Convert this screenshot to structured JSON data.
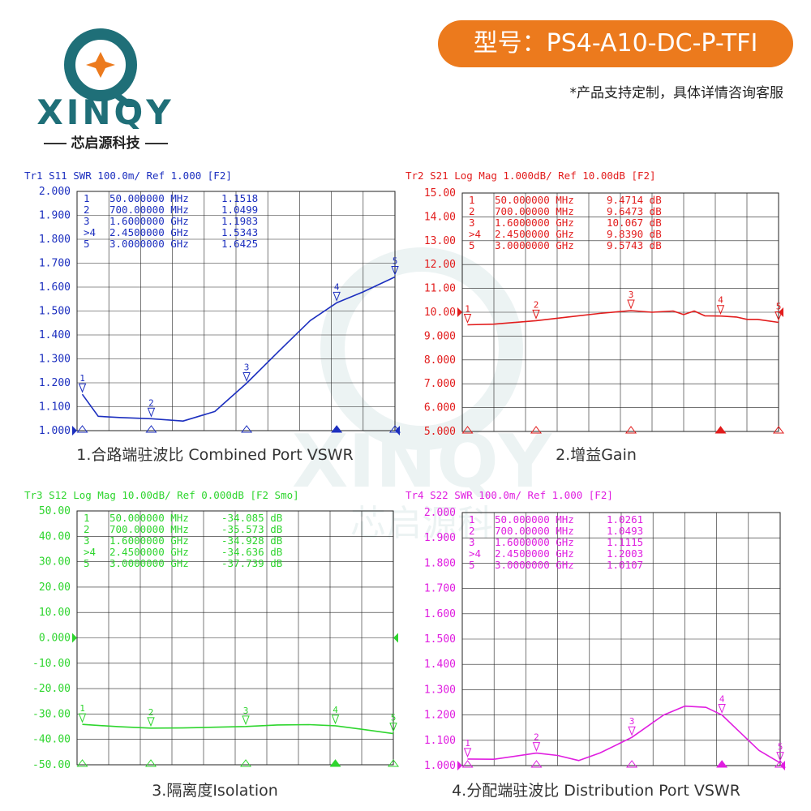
{
  "brand": {
    "name": "XINQY",
    "subtitle": "芯启源科技",
    "watermark_text": "XINQY",
    "watermark_sub": "芯启源科"
  },
  "header": {
    "model": "型号：PS4-A10-DC-P-TFI",
    "note": "*产品支持定制，具体详情咨询客服"
  },
  "colors": {
    "s11": "#1c2fbf",
    "s21": "#e21c1c",
    "s12": "#2ed52e",
    "s22": "#e01ee0",
    "grid": "#222222",
    "accent": "#ec7a1d",
    "brand": "#1f6f78"
  },
  "chart_data": [
    {
      "type": "line",
      "header": "Tr1  S11  SWR 100.0m/ Ref 1.000 [F2]",
      "caption": "1.合路端驻波比 Combined Port VSWR",
      "x": [
        0.05,
        0.2,
        0.4,
        0.7,
        1.0,
        1.3,
        1.6,
        1.9,
        2.2,
        2.45,
        2.7,
        3.0
      ],
      "series": [
        {
          "values": [
            1.1518,
            1.06,
            1.055,
            1.0499,
            1.04,
            1.08,
            1.1983,
            1.33,
            1.46,
            1.5343,
            1.58,
            1.6425
          ]
        }
      ],
      "ylim": [
        1.0,
        2.0
      ],
      "xlim": [
        0.0,
        3.0
      ],
      "yticks": [
        "2.000",
        "1.900",
        "1.800",
        "1.700",
        "1.600",
        "1.500",
        "1.400",
        "1.300",
        "1.200",
        "1.100",
        "1.000"
      ],
      "markers": [
        {
          "num": "1",
          "freq": "50.000000 MHz",
          "value": "1.1518",
          "x": 0.05,
          "y": 1.1518
        },
        {
          "num": "2",
          "freq": "700.00000 MHz",
          "value": "1.0499",
          "x": 0.7,
          "y": 1.0499
        },
        {
          "num": "3",
          "freq": "1.6000000 GHz",
          "value": "1.1983",
          "x": 1.6,
          "y": 1.1983
        },
        {
          "num": ">4",
          "freq": "2.4500000 GHz",
          "value": "1.5343",
          "x": 2.45,
          "y": 1.5343
        },
        {
          "num": "5",
          "freq": "3.0000000 GHz",
          "value": "1.6425",
          "x": 3.0,
          "y": 1.6425
        }
      ]
    },
    {
      "type": "line",
      "header": "Tr2  S21  Log Mag 1.000dB/ Ref 10.00dB [F2]",
      "caption": "2.增益Gain",
      "x": [
        0.05,
        0.3,
        0.7,
        1.0,
        1.3,
        1.6,
        1.8,
        2.0,
        2.1,
        2.2,
        2.3,
        2.45,
        2.6,
        2.7,
        2.8,
        3.0
      ],
      "series": [
        {
          "values": [
            9.4714,
            9.5,
            9.6473,
            9.8,
            9.95,
            10.067,
            10.0,
            10.05,
            9.9,
            10.05,
            9.85,
            9.839,
            9.8,
            9.7,
            9.7,
            9.5743
          ]
        }
      ],
      "ylim": [
        5.0,
        15.0
      ],
      "xlim": [
        0.0,
        3.0
      ],
      "yticks": [
        "15.00",
        "14.00",
        "13.00",
        "12.00",
        "11.00",
        "10.00",
        "9.000",
        "8.000",
        "7.000",
        "6.000",
        "5.000"
      ],
      "markers": [
        {
          "num": "1",
          "freq": "50.000000 MHz",
          "value": "9.4714 dB",
          "x": 0.05,
          "y": 9.4714
        },
        {
          "num": "2",
          "freq": "700.00000 MHz",
          "value": "9.6473 dB",
          "x": 0.7,
          "y": 9.6473
        },
        {
          "num": "3",
          "freq": "1.6000000 GHz",
          "value": "10.067 dB",
          "x": 1.6,
          "y": 10.067
        },
        {
          "num": ">4",
          "freq": "2.4500000 GHz",
          "value": "9.8390 dB",
          "x": 2.45,
          "y": 9.839
        },
        {
          "num": "5",
          "freq": "3.0000000 GHz",
          "value": "9.5743 dB",
          "x": 3.0,
          "y": 9.5743
        }
      ]
    },
    {
      "type": "line",
      "header": "Tr3  S12  Log Mag 10.00dB/ Ref 0.000dB [F2 Smo]",
      "caption": "3.隔离度Isolation",
      "x": [
        0.05,
        0.4,
        0.7,
        1.0,
        1.3,
        1.6,
        1.9,
        2.2,
        2.45,
        2.7,
        3.0
      ],
      "series": [
        {
          "values": [
            -34.085,
            -35.0,
            -35.573,
            -35.5,
            -35.2,
            -34.928,
            -34.3,
            -34.2,
            -34.636,
            -36.0,
            -37.739
          ]
        }
      ],
      "ylim": [
        -50.0,
        50.0
      ],
      "xlim": [
        0.0,
        3.0
      ],
      "yticks": [
        "50.00",
        "40.00",
        "30.00",
        "20.00",
        "10.00",
        "0.000",
        "-10.00",
        "-20.00",
        "-30.00",
        "-40.00",
        "-50.00"
      ],
      "markers": [
        {
          "num": "1",
          "freq": "50.000000 MHz",
          "value": "-34.085 dB",
          "x": 0.05,
          "y": -34.085
        },
        {
          "num": "2",
          "freq": "700.00000 MHz",
          "value": "-35.573 dB",
          "x": 0.7,
          "y": -35.573
        },
        {
          "num": "3",
          "freq": "1.6000000 GHz",
          "value": "-34.928 dB",
          "x": 1.6,
          "y": -34.928
        },
        {
          "num": ">4",
          "freq": "2.4500000 GHz",
          "value": "-34.636 dB",
          "x": 2.45,
          "y": -34.636
        },
        {
          "num": "5",
          "freq": "3.0000000 GHz",
          "value": "-37.739 dB",
          "x": 3.0,
          "y": -37.739
        }
      ]
    },
    {
      "type": "line",
      "header": "Tr4  S22  SWR 100.0m/ Ref 1.000 [F2]",
      "caption": "4.分配端驻波比 Distribution  Port VSWR",
      "x": [
        0.05,
        0.3,
        0.7,
        0.9,
        1.1,
        1.3,
        1.6,
        1.9,
        2.1,
        2.3,
        2.45,
        2.6,
        2.8,
        3.0
      ],
      "series": [
        {
          "values": [
            1.0261,
            1.025,
            1.0493,
            1.04,
            1.02,
            1.05,
            1.1115,
            1.2,
            1.235,
            1.23,
            1.2003,
            1.14,
            1.06,
            1.0107
          ]
        }
      ],
      "ylim": [
        1.0,
        2.0
      ],
      "xlim": [
        0.0,
        3.0
      ],
      "yticks": [
        "2.000",
        "1.900",
        "1.800",
        "1.700",
        "1.600",
        "1.500",
        "1.400",
        "1.300",
        "1.200",
        "1.100",
        "1.000"
      ],
      "markers": [
        {
          "num": "1",
          "freq": "50.000000 MHz",
          "value": "1.0261",
          "x": 0.05,
          "y": 1.0261
        },
        {
          "num": "2",
          "freq": "700.00000 MHz",
          "value": "1.0493",
          "x": 0.7,
          "y": 1.0493
        },
        {
          "num": "3",
          "freq": "1.6000000 GHz",
          "value": "1.1115",
          "x": 1.6,
          "y": 1.1115
        },
        {
          "num": ">4",
          "freq": "2.4500000 GHz",
          "value": "1.2003",
          "x": 2.45,
          "y": 1.2003
        },
        {
          "num": "5",
          "freq": "3.0000000 GHz",
          "value": "1.0107",
          "x": 3.0,
          "y": 1.0107
        }
      ]
    }
  ]
}
